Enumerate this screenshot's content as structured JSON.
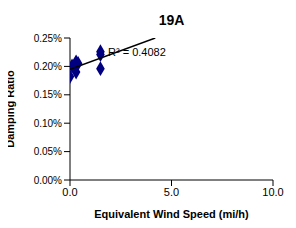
{
  "chart_data": {
    "type": "scatter",
    "title": "19A",
    "x_label": "Equivalent Wind Speed (mi/h)",
    "y_label": "Damping Ratio",
    "annotation": "R² = 0.4082",
    "series": [
      {
        "type": "scatter",
        "color": "#000080",
        "marker": "diamond",
        "x": [
          0.0,
          0.1,
          0.3,
          0.3,
          0.4,
          1.5,
          1.5,
          1.5
        ],
        "values": [
          0.182,
          0.201,
          0.208,
          0.19,
          0.205,
          0.226,
          0.196,
          0.221
        ]
      },
      {
        "type": "line",
        "color": "#000000",
        "x": [
          0.0,
          4.2
        ],
        "values": [
          0.195,
          0.25
        ]
      }
    ],
    "xlim": [
      0,
      10
    ],
    "xticks": [
      {
        "value": 0,
        "label": "0.0"
      },
      {
        "value": 5,
        "label": "5.0"
      },
      {
        "value": 10,
        "label": "10.0"
      }
    ],
    "ylim": [
      0,
      0.25
    ],
    "yticks": [
      {
        "value": 0,
        "label": "0.00%"
      },
      {
        "value": 0.05,
        "label": "0.05%"
      },
      {
        "value": 0.1,
        "label": "0.10%"
      },
      {
        "value": 0.15,
        "label": "0.15%"
      },
      {
        "value": 0.2,
        "label": "0.20%"
      },
      {
        "value": 0.25,
        "label": "0.25%"
      }
    ],
    "grid": false
  }
}
